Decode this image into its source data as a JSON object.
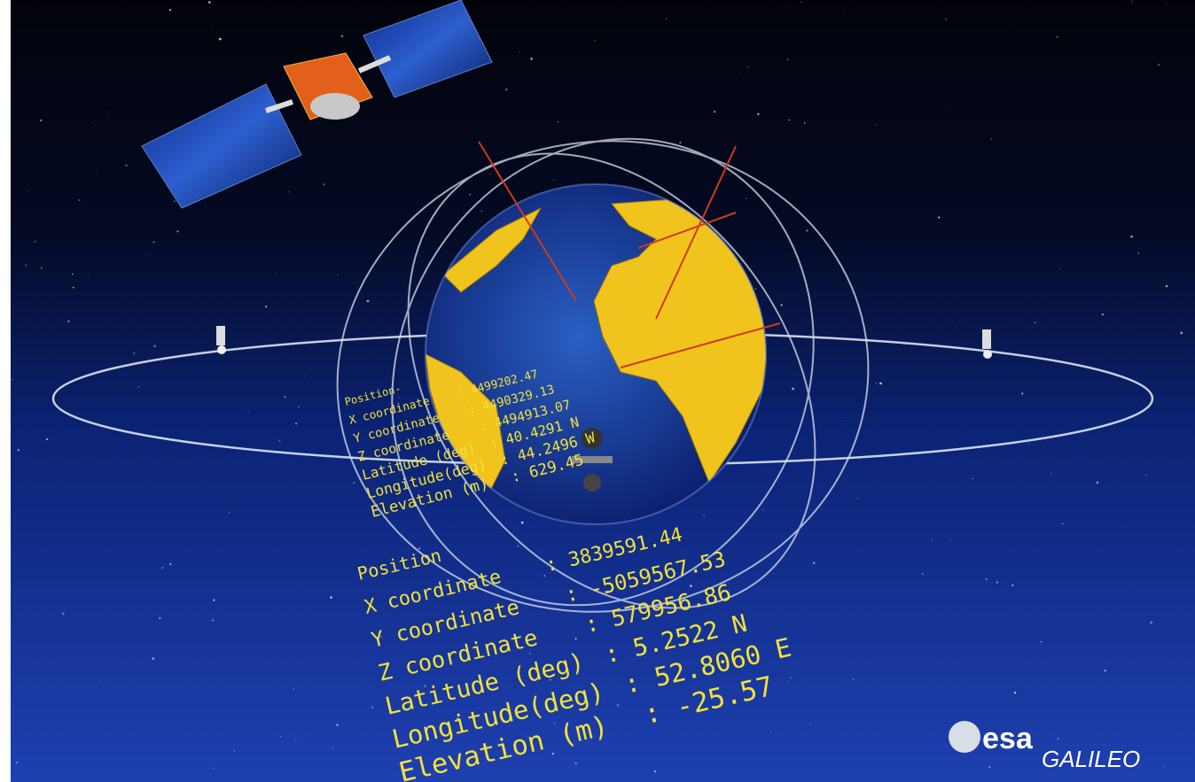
{
  "near_block": {
    "title": "Position",
    "lines": [
      {
        "label": "X coordinate",
        "value": ": 3839591.44"
      },
      {
        "label": "Y coordinate",
        "value": ": -5059567.53"
      },
      {
        "label": "Z coordinate",
        "value": ": 579956.86"
      },
      {
        "label": "Latitude (deg)",
        "value": ": 5.2522  N"
      },
      {
        "label": "Longitude(deg)",
        "value": ": 52.8060 E"
      },
      {
        "label": "Elevation (m)",
        "value": ": -25.57"
      }
    ]
  },
  "far_block": {
    "title": "Position-",
    "lines": [
      {
        "label": "X coordinate",
        "value": ": 4499202.47"
      },
      {
        "label": "Y coordinate",
        "value": ": 4490329.13"
      },
      {
        "label": "Z coordinate",
        "value": ": 4494913.07"
      },
      {
        "label": "Latitude (deg)",
        "value": ": 40.4291 N"
      },
      {
        "label": "Longitude(deg)",
        "value": ": 44.2496 W"
      },
      {
        "label": "Elevation (m)",
        "value": ": 629.45"
      }
    ]
  },
  "logo": {
    "agency": "esa",
    "program": "GALILEO"
  }
}
